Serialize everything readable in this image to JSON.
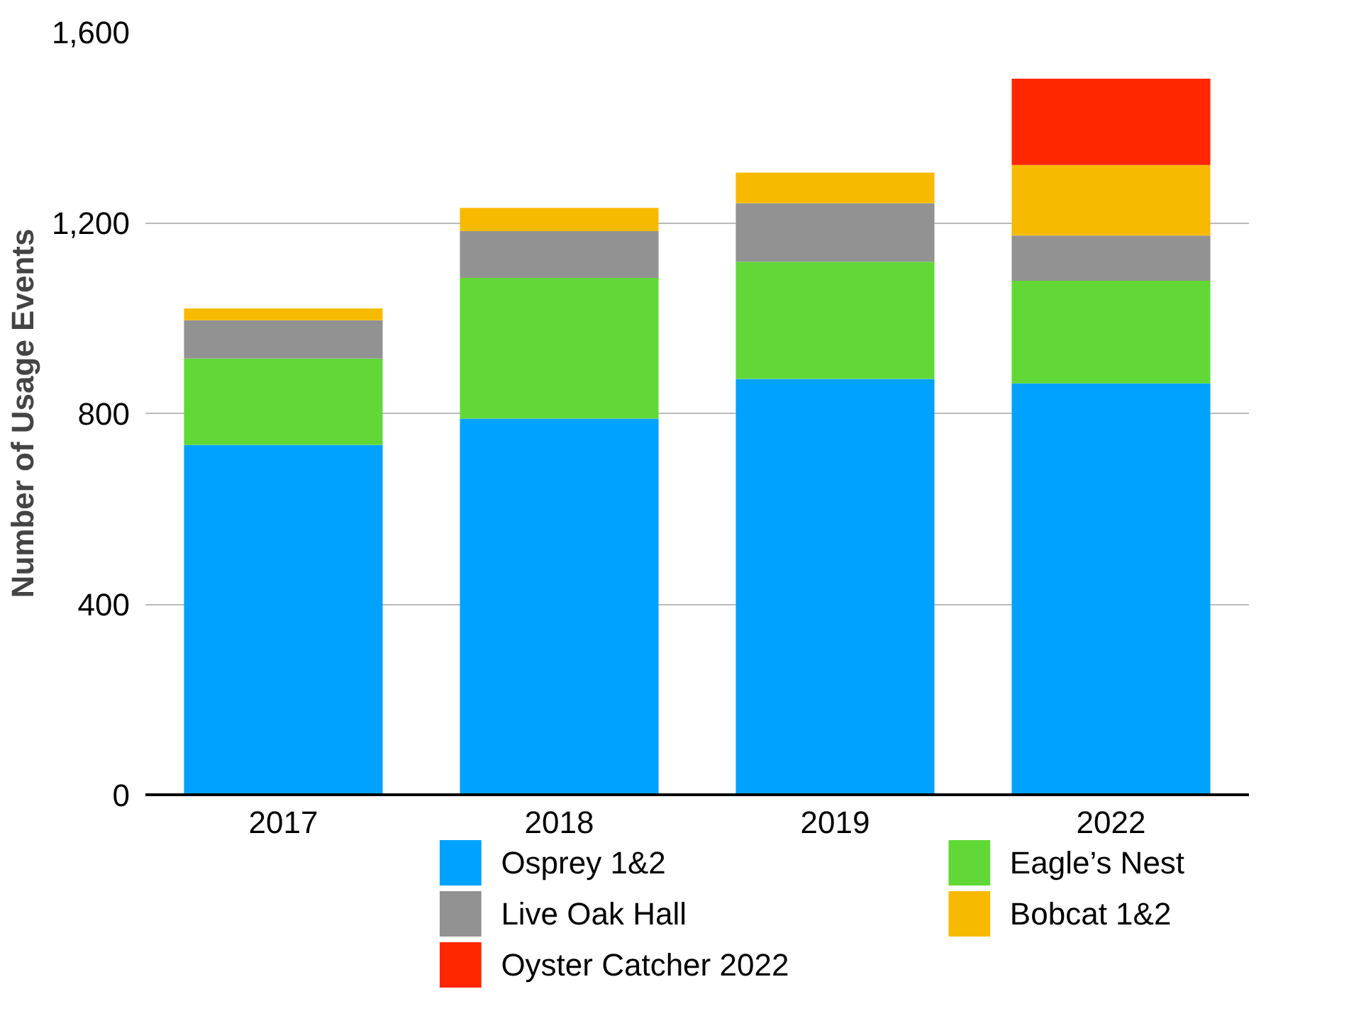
{
  "chart_data": {
    "type": "bar",
    "stacked": true,
    "ylabel": "Number of Usage Events",
    "categories": [
      "2017",
      "2018",
      "2019",
      "2022"
    ],
    "series": [
      {
        "name": "Osprey 1&2",
        "color": "#00a2ff",
        "values": [
          734,
          789,
          872,
          863
        ]
      },
      {
        "name": "Eagle’s Nest",
        "color": "#61d836",
        "values": [
          181,
          295,
          246,
          215
        ]
      },
      {
        "name": "Live Oak Hall",
        "color": "#929292",
        "values": [
          80,
          98,
          123,
          95
        ]
      },
      {
        "name": "Bobcat 1&2",
        "color": "#f8ba00",
        "values": [
          25,
          49,
          64,
          148
        ]
      },
      {
        "name": "Oyster Catcher 2022",
        "color": "#ff2600",
        "values": [
          0,
          0,
          0,
          181
        ]
      }
    ],
    "ylim": [
      0,
      1600
    ],
    "yticks": [
      0,
      {
        "value": 400,
        "label": "400"
      },
      {
        "value": 800,
        "label": "800"
      },
      {
        "value": 1200,
        "label": "1,200"
      },
      {
        "value": 1600,
        "label": "1,600"
      }
    ],
    "grid": "y",
    "legend": "bottom"
  }
}
